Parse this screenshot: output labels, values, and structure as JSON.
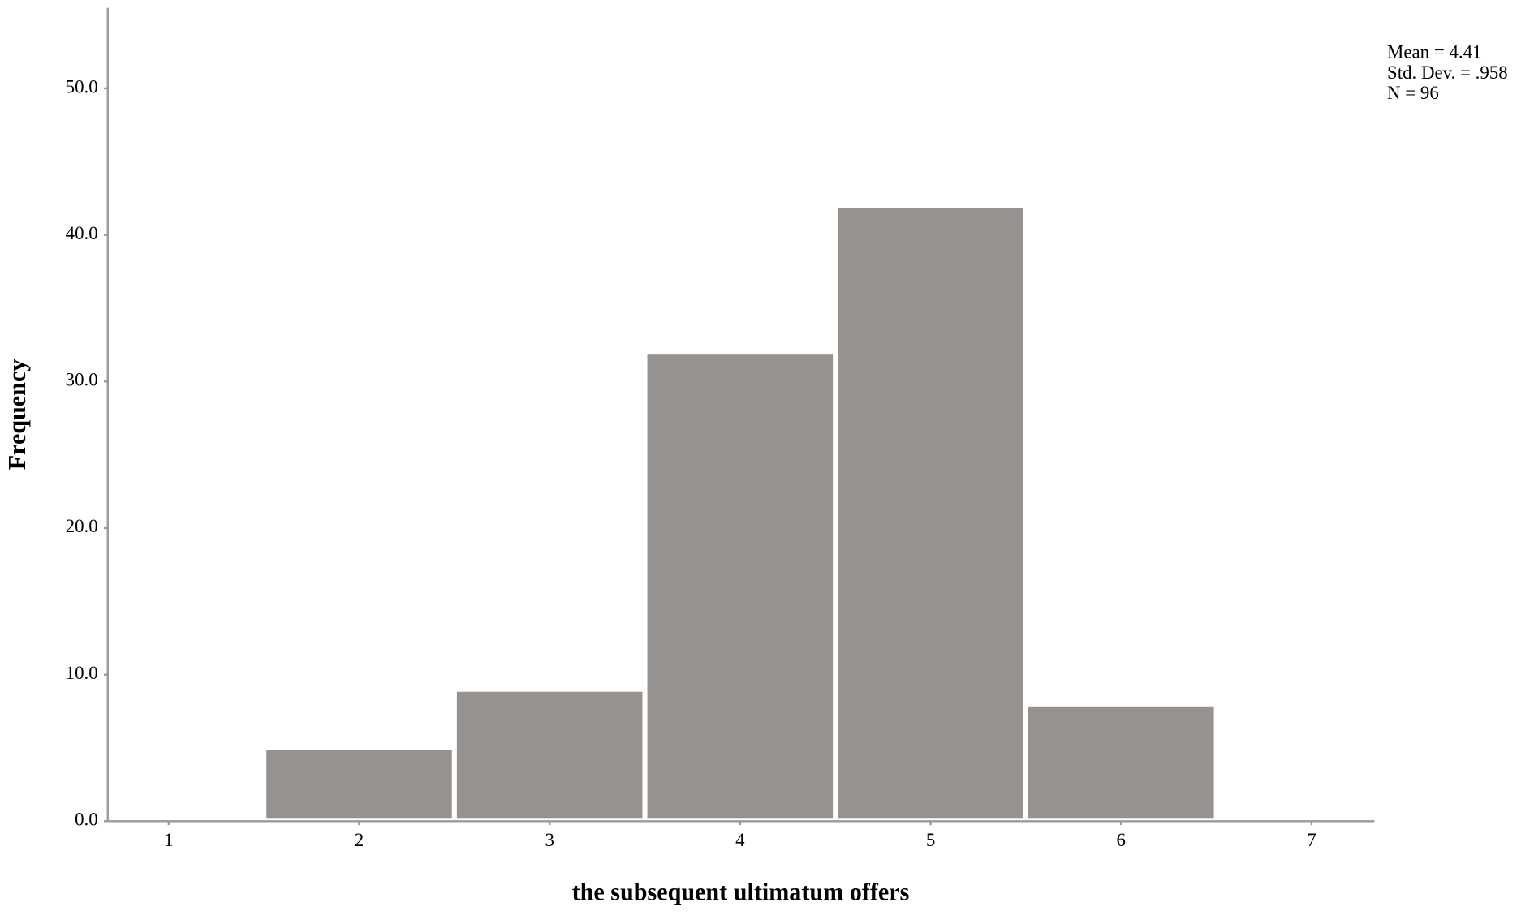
{
  "chart_data": {
    "type": "histogram",
    "x_label": "the subsequent ultimatum offers",
    "y_label": "Frequency",
    "bins": [
      0.5,
      1.5,
      2.5,
      3.5,
      4.5,
      5.5,
      6.5,
      7.5
    ],
    "values": [
      0,
      5,
      9,
      32,
      42,
      8,
      0
    ],
    "color": "#959290",
    "xlim": [
      0.68,
      7.33
    ],
    "xticks": [
      1,
      2,
      3,
      4,
      5,
      6,
      7
    ],
    "ylim": [
      0,
      55.5
    ],
    "yticks": [
      {
        "value": 0,
        "label": "0.0"
      },
      {
        "value": 10,
        "label": "10.0"
      },
      {
        "value": 20,
        "label": "20.0"
      },
      {
        "value": 30,
        "label": "30.0"
      },
      {
        "value": 40,
        "label": "40.0"
      },
      {
        "value": 50,
        "label": "50.0"
      }
    ],
    "annotations": [
      "Mean = 4.41",
      "Std. Dev. = .958",
      "N = 96"
    ]
  }
}
